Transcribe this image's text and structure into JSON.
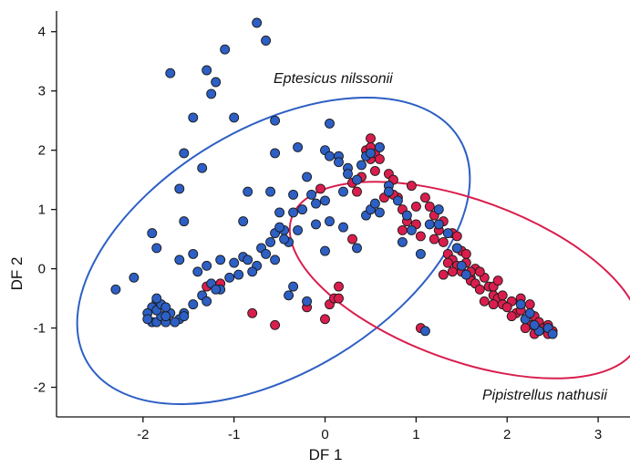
{
  "chart_data": {
    "type": "scatter",
    "xlabel": "DF 1",
    "ylabel": "DF 2",
    "xlim": [
      -2.95,
      3.35
    ],
    "ylim": [
      -2.5,
      4.35
    ],
    "xticks": [
      -2,
      -1,
      0,
      1,
      2,
      3
    ],
    "yticks": [
      -2,
      -1,
      0,
      1,
      2,
      3,
      4
    ],
    "grid": false,
    "annotations": [
      "Eptesicus nilssonii",
      "Pipistrellus nathusii"
    ],
    "colors": {
      "Eptesicus nilssonii": "#2d5fc4",
      "Pipistrellus nathusii": "#d91e4d"
    },
    "series": [
      {
        "name": "Pipistrellus nathusii",
        "points": [
          [
            -1.75,
            -0.85
          ],
          [
            -1.3,
            -0.3
          ],
          [
            -1.15,
            -0.25
          ],
          [
            -0.8,
            -0.75
          ],
          [
            -0.55,
            -0.95
          ],
          [
            -0.2,
            -0.65
          ],
          [
            0.0,
            -0.85
          ],
          [
            0.05,
            -0.6
          ],
          [
            0.1,
            -0.5
          ],
          [
            0.15,
            -0.5
          ],
          [
            0.15,
            -0.3
          ],
          [
            -0.05,
            1.35
          ],
          [
            0.3,
            0.5
          ],
          [
            0.3,
            1.45
          ],
          [
            0.35,
            1.3
          ],
          [
            0.4,
            1.55
          ],
          [
            0.5,
            1.85
          ],
          [
            0.55,
            1.95
          ],
          [
            0.55,
            1.65
          ],
          [
            0.45,
            2.0
          ],
          [
            0.5,
            2.05
          ],
          [
            0.5,
            2.2
          ],
          [
            0.6,
            2.05
          ],
          [
            0.65,
            1.2
          ],
          [
            0.7,
            1.6
          ],
          [
            0.75,
            1.5
          ],
          [
            0.8,
            1.2
          ],
          [
            0.85,
            1.0
          ],
          [
            0.9,
            0.8
          ],
          [
            0.95,
            1.4
          ],
          [
            1.0,
            1.05
          ],
          [
            1.0,
            0.75
          ],
          [
            1.05,
            -1.0
          ],
          [
            1.1,
            1.2
          ],
          [
            1.15,
            1.05
          ],
          [
            1.2,
            0.9
          ],
          [
            1.25,
            0.65
          ],
          [
            1.3,
            0.45
          ],
          [
            1.35,
            0.25
          ],
          [
            1.4,
            0.15
          ],
          [
            1.45,
            0.05
          ],
          [
            1.5,
            -0.05
          ],
          [
            1.55,
            0.1
          ],
          [
            1.6,
            -0.15
          ],
          [
            1.65,
            0.0
          ],
          [
            1.3,
            0.8
          ],
          [
            1.4,
            0.6
          ],
          [
            1.45,
            0.35
          ],
          [
            1.5,
            0.3
          ],
          [
            1.35,
            0.1
          ],
          [
            1.4,
            -0.05
          ],
          [
            1.6,
            -0.2
          ],
          [
            1.65,
            -0.25
          ],
          [
            1.7,
            -0.35
          ],
          [
            1.75,
            -0.15
          ],
          [
            1.8,
            -0.3
          ],
          [
            1.85,
            -0.45
          ],
          [
            1.9,
            -0.5
          ],
          [
            1.95,
            -0.6
          ],
          [
            2.05,
            -0.55
          ],
          [
            2.1,
            -0.75
          ],
          [
            2.15,
            -0.7
          ],
          [
            2.2,
            -0.85
          ],
          [
            2.25,
            -0.95
          ],
          [
            2.3,
            -0.8
          ],
          [
            2.35,
            -0.9
          ],
          [
            2.4,
            -1.0
          ],
          [
            2.45,
            -0.95
          ],
          [
            2.5,
            -1.05
          ],
          [
            2.2,
            -1.0
          ],
          [
            2.3,
            -1.1
          ],
          [
            1.55,
            0.25
          ],
          [
            1.2,
            0.5
          ],
          [
            1.3,
            -0.1
          ],
          [
            1.45,
            0.55
          ],
          [
            1.05,
            0.55
          ],
          [
            0.85,
            0.65
          ],
          [
            1.6,
            -0.05
          ],
          [
            1.7,
            -0.05
          ],
          [
            0.75,
            1.25
          ],
          [
            0.6,
            1.85
          ],
          [
            1.85,
            -0.6
          ],
          [
            2.0,
            -0.65
          ],
          [
            2.15,
            -0.5
          ],
          [
            2.45,
            -1.1
          ],
          [
            2.35,
            -1.05
          ],
          [
            2.05,
            -0.8
          ],
          [
            2.25,
            -0.6
          ],
          [
            1.75,
            -0.55
          ],
          [
            1.85,
            -0.3
          ],
          [
            1.95,
            -0.45
          ],
          [
            1.9,
            -0.2
          ]
        ]
      },
      {
        "name": "Eptesicus nilssonii",
        "points": [
          [
            -0.75,
            4.15
          ],
          [
            -0.65,
            3.85
          ],
          [
            -1.1,
            3.7
          ],
          [
            -1.7,
            3.3
          ],
          [
            -1.3,
            3.35
          ],
          [
            -1.2,
            3.15
          ],
          [
            -1.25,
            2.95
          ],
          [
            -1.0,
            2.55
          ],
          [
            -1.45,
            2.55
          ],
          [
            -0.55,
            2.5
          ],
          [
            0.05,
            2.45
          ],
          [
            -1.55,
            1.95
          ],
          [
            -1.35,
            1.7
          ],
          [
            -0.55,
            1.95
          ],
          [
            -0.3,
            2.05
          ],
          [
            0.0,
            2.0
          ],
          [
            0.05,
            1.9
          ],
          [
            -0.2,
            1.55
          ],
          [
            -1.6,
            1.35
          ],
          [
            -0.85,
            1.3
          ],
          [
            -0.6,
            1.3
          ],
          [
            -0.35,
            1.25
          ],
          [
            -0.15,
            1.25
          ],
          [
            0.15,
            1.9
          ],
          [
            0.15,
            1.8
          ],
          [
            0.25,
            1.7
          ],
          [
            -1.9,
            0.6
          ],
          [
            -1.55,
            0.8
          ],
          [
            -0.9,
            0.8
          ],
          [
            -0.5,
            0.95
          ],
          [
            -0.1,
            1.1
          ],
          [
            0.0,
            1.15
          ],
          [
            -0.3,
            0.65
          ],
          [
            -0.55,
            0.6
          ],
          [
            -0.6,
            0.45
          ],
          [
            -0.45,
            0.65
          ],
          [
            -0.7,
            0.35
          ],
          [
            -0.4,
            0.45
          ],
          [
            -0.55,
            0.15
          ],
          [
            -0.75,
            0.05
          ],
          [
            -0.9,
            0.2
          ],
          [
            -1.15,
            0.15
          ],
          [
            -1.3,
            0.05
          ],
          [
            -1.45,
            0.25
          ],
          [
            -1.6,
            0.15
          ],
          [
            -1.85,
            0.35
          ],
          [
            -2.1,
            -0.15
          ],
          [
            -2.3,
            -0.35
          ],
          [
            -1.4,
            -0.05
          ],
          [
            -1.05,
            -0.15
          ],
          [
            -0.8,
            -0.05
          ],
          [
            -0.85,
            0.15
          ],
          [
            -1.15,
            -0.35
          ],
          [
            -1.25,
            -0.25
          ],
          [
            -1.35,
            -0.45
          ],
          [
            -1.45,
            -0.6
          ],
          [
            -1.55,
            -0.75
          ],
          [
            -1.6,
            -0.85
          ],
          [
            -1.85,
            -0.55
          ],
          [
            -1.9,
            -0.65
          ],
          [
            -1.95,
            -0.75
          ],
          [
            -1.9,
            -0.9
          ],
          [
            -1.85,
            -0.9
          ],
          [
            -1.8,
            -0.8
          ],
          [
            -1.75,
            -0.9
          ],
          [
            -1.7,
            -0.75
          ],
          [
            -1.85,
            -0.7
          ],
          [
            -1.8,
            -0.6
          ],
          [
            -1.85,
            -0.5
          ],
          [
            -1.75,
            -0.8
          ],
          [
            -1.95,
            -0.85
          ],
          [
            -1.65,
            -0.9
          ],
          [
            -1.55,
            -0.8
          ],
          [
            -1.3,
            -0.55
          ],
          [
            -1.2,
            -0.35
          ],
          [
            -0.4,
            -0.45
          ],
          [
            -0.2,
            -0.55
          ],
          [
            -0.35,
            -0.3
          ],
          [
            0.0,
            0.3
          ],
          [
            -0.1,
            0.75
          ],
          [
            0.05,
            0.8
          ],
          [
            0.2,
            0.7
          ],
          [
            0.35,
            0.35
          ],
          [
            0.45,
            0.9
          ],
          [
            0.5,
            1.0
          ],
          [
            0.55,
            1.1
          ],
          [
            0.6,
            0.95
          ],
          [
            0.7,
            1.4
          ],
          [
            0.8,
            1.15
          ],
          [
            0.9,
            0.9
          ],
          [
            0.95,
            0.65
          ],
          [
            0.85,
            0.45
          ],
          [
            1.05,
            0.25
          ],
          [
            1.15,
            0.75
          ],
          [
            1.25,
            1.0
          ],
          [
            1.35,
            0.6
          ],
          [
            1.45,
            0.35
          ],
          [
            1.5,
            0.05
          ],
          [
            1.55,
            -0.1
          ],
          [
            0.35,
            1.5
          ],
          [
            0.25,
            1.6
          ],
          [
            0.4,
            1.75
          ],
          [
            0.45,
            1.9
          ],
          [
            0.6,
            2.05
          ],
          [
            0.5,
            1.95
          ],
          [
            1.1,
            -1.05
          ],
          [
            2.35,
            -1.05
          ],
          [
            2.45,
            -1.0
          ],
          [
            2.5,
            -1.1
          ],
          [
            2.2,
            -0.85
          ],
          [
            2.15,
            -0.6
          ],
          [
            2.3,
            -0.95
          ],
          [
            2.25,
            -0.75
          ],
          [
            -0.35,
            0.95
          ],
          [
            -0.25,
            1.0
          ],
          [
            -0.5,
            0.7
          ],
          [
            -0.65,
            0.25
          ],
          [
            -1.0,
            0.1
          ],
          [
            -0.95,
            -0.1
          ],
          [
            0.7,
            1.3
          ],
          [
            0.2,
            1.3
          ],
          [
            -0.45,
            0.5
          ],
          [
            1.25,
            0.75
          ],
          [
            -1.75,
            -0.65
          ]
        ]
      }
    ]
  }
}
